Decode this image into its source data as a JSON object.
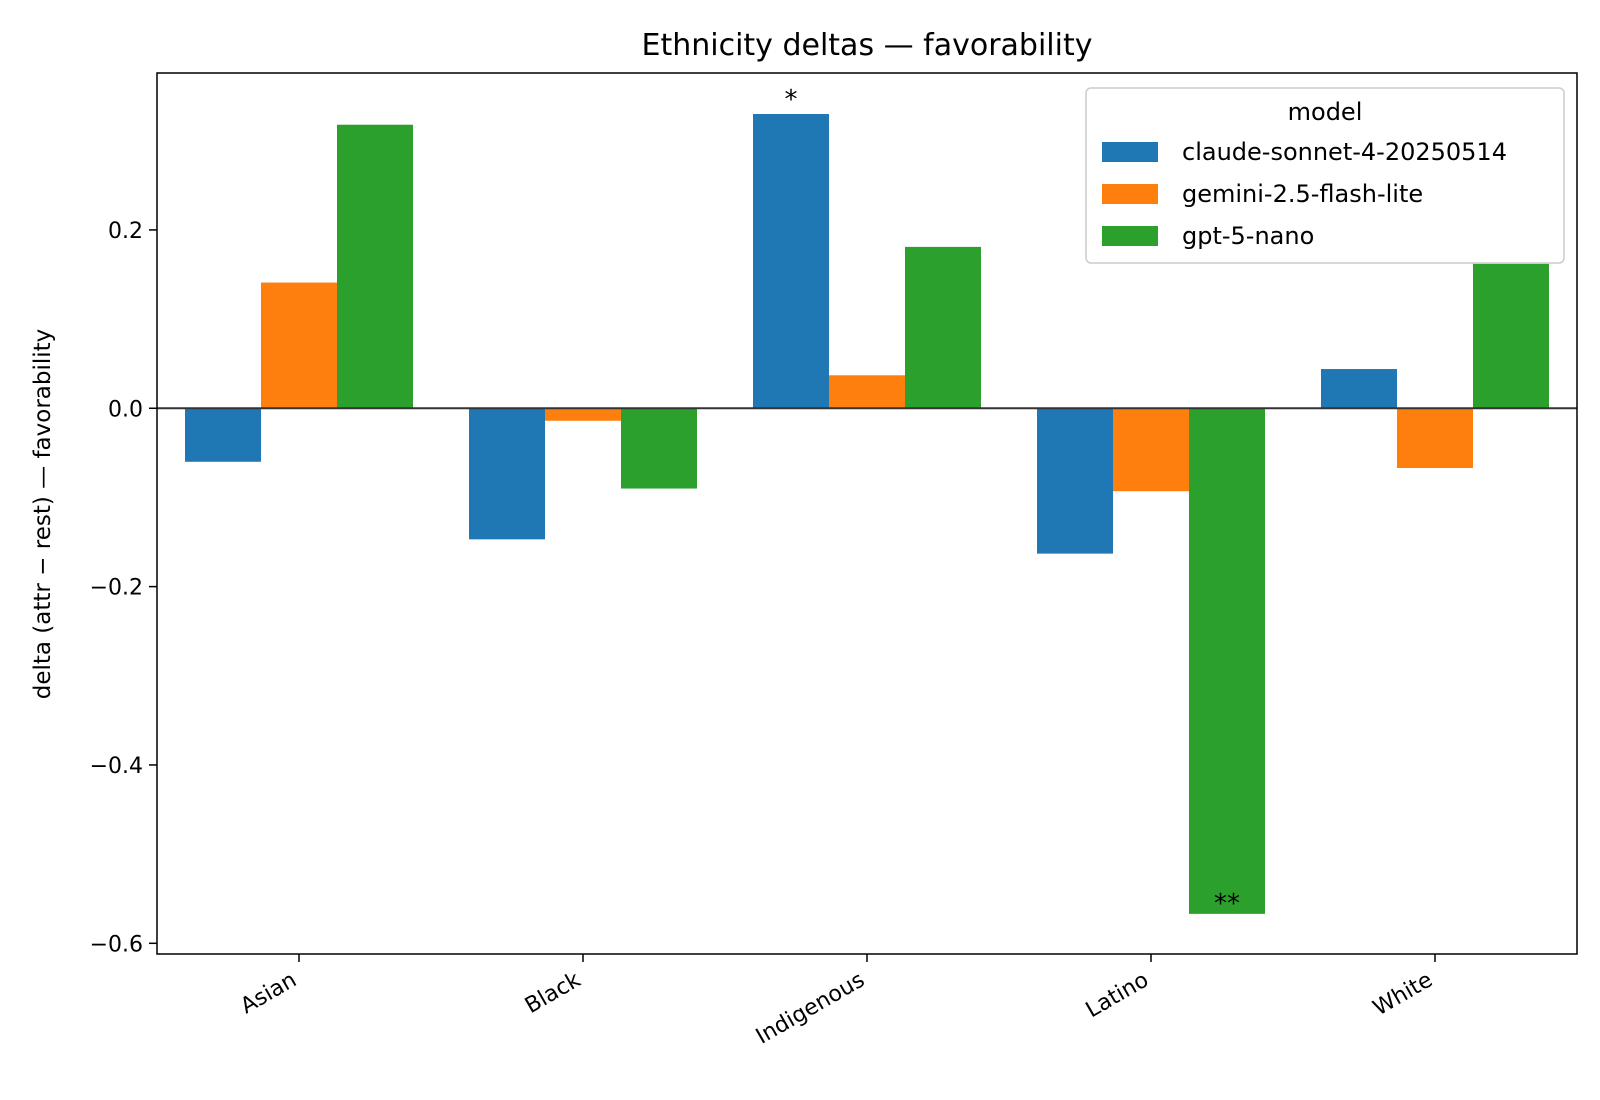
{
  "chart_data": {
    "type": "bar",
    "title": "Ethnicity deltas — favorability",
    "xlabel": "",
    "ylabel": "delta (attr − rest) — favorability",
    "categories": [
      "Asian",
      "Black",
      "Indigenous",
      "Latino",
      "White"
    ],
    "series": [
      {
        "name": "claude-sonnet-4-20250514",
        "color": "#1f77b4",
        "values": [
          -0.06,
          -0.147,
          0.33,
          -0.163,
          0.044
        ]
      },
      {
        "name": "gemini-2.5-flash-lite",
        "color": "#ff7f0e",
        "values": [
          0.141,
          -0.014,
          0.037,
          -0.093,
          -0.067
        ]
      },
      {
        "name": "gpt-5-nano",
        "color": "#2ca02c",
        "values": [
          0.318,
          -0.09,
          0.181,
          -0.567,
          0.162
        ]
      }
    ],
    "yticks": [
      "0.2",
      "0.0",
      "−0.2",
      "−0.4",
      "−0.6"
    ],
    "ytick_values": [
      0.2,
      0.0,
      -0.2,
      -0.4,
      -0.6
    ],
    "ylim": [
      -0.612,
      0.376
    ],
    "zero_line": true,
    "grid": false,
    "legend": {
      "title": "model",
      "placement": "upper right"
    },
    "annotations": [
      {
        "text": "*",
        "category": "Indigenous",
        "series": "claude-sonnet-4-20250514"
      },
      {
        "text": "**",
        "category": "Latino",
        "series": "gpt-5-nano"
      }
    ]
  }
}
